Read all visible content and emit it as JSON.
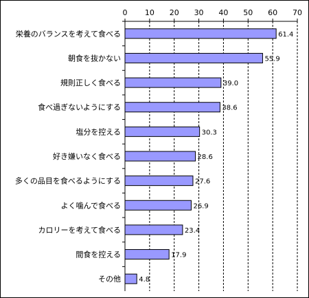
{
  "chart_data": {
    "type": "bar",
    "orientation": "horizontal",
    "categories": [
      "栄養のバランスを考えて食べる",
      "朝食を抜かない",
      "規則正しく食べる",
      "食べ過ぎないようにする",
      "塩分を控える",
      "好き嫌いなく食べる",
      "多くの品目を食べるようにする",
      "よく噛んで食べる",
      "カロリーを考えて食べる",
      "間食を控える",
      "その他"
    ],
    "values": [
      61.4,
      55.9,
      39.0,
      38.6,
      30.3,
      28.6,
      27.6,
      26.9,
      23.4,
      17.9,
      4.8
    ],
    "value_labels": [
      "61.4",
      "55.9",
      "39.0",
      "38.6",
      "30.3",
      "28.6",
      "27.6",
      "26.9",
      "23.4",
      "17.9",
      "4.8"
    ],
    "xlim": [
      0,
      70
    ],
    "xticks": [
      0,
      10,
      20,
      30,
      40,
      50,
      60,
      70
    ],
    "axis_position": "top",
    "grid": "vertical dashed",
    "legend": "none",
    "colors": {
      "bar_fill": "#9999ff",
      "bar_stroke": "#000000",
      "grid": "#000000"
    }
  }
}
